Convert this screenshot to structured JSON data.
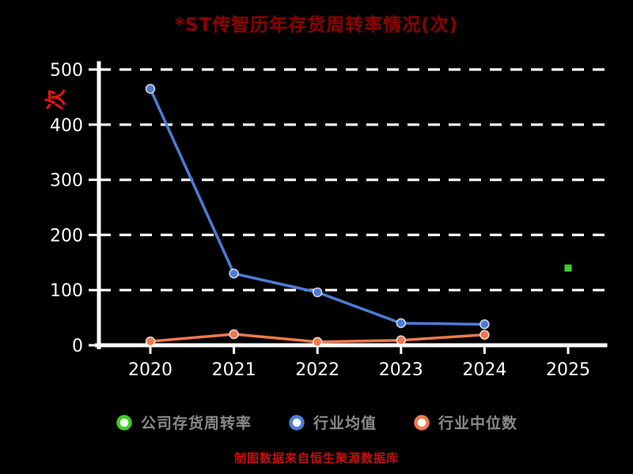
{
  "title": {
    "text": "*ST传智历年存货周转率情况(次)",
    "color": "#8b0000"
  },
  "footer": {
    "text": "制图数据来自恒生聚源数据库",
    "color": "#c40e0e"
  },
  "colors": {
    "background": "#000000",
    "axis": "#ffffff",
    "tick_labels": "#ffffff",
    "legend_text": "#8a8a8a",
    "y_unit_label": "#e81212"
  },
  "chart_data": {
    "type": "line",
    "title": "*ST传智历年存货周转率情况(次)",
    "xlabel": "",
    "ylabel": "次",
    "categories": [
      "2020",
      "2021",
      "2022",
      "2023",
      "2024",
      "2025"
    ],
    "series": [
      {
        "name": "公司存货周转率",
        "color": "#3ecc28",
        "marker": "square",
        "values": [
          null,
          null,
          null,
          null,
          null,
          140
        ]
      },
      {
        "name": "行业均值",
        "color": "#4d7cd6",
        "marker": "circle",
        "values": [
          465,
          130,
          96,
          40,
          38,
          null
        ]
      },
      {
        "name": "行业中位数",
        "color": "#f0794e",
        "marker": "circle",
        "values": [
          7,
          20,
          6,
          9,
          19,
          null
        ]
      }
    ],
    "ylim": [
      0,
      500
    ],
    "yticks": [
      0,
      100,
      200,
      300,
      400,
      500
    ],
    "grid": "horizontal-dashed",
    "legend_position": "bottom"
  }
}
